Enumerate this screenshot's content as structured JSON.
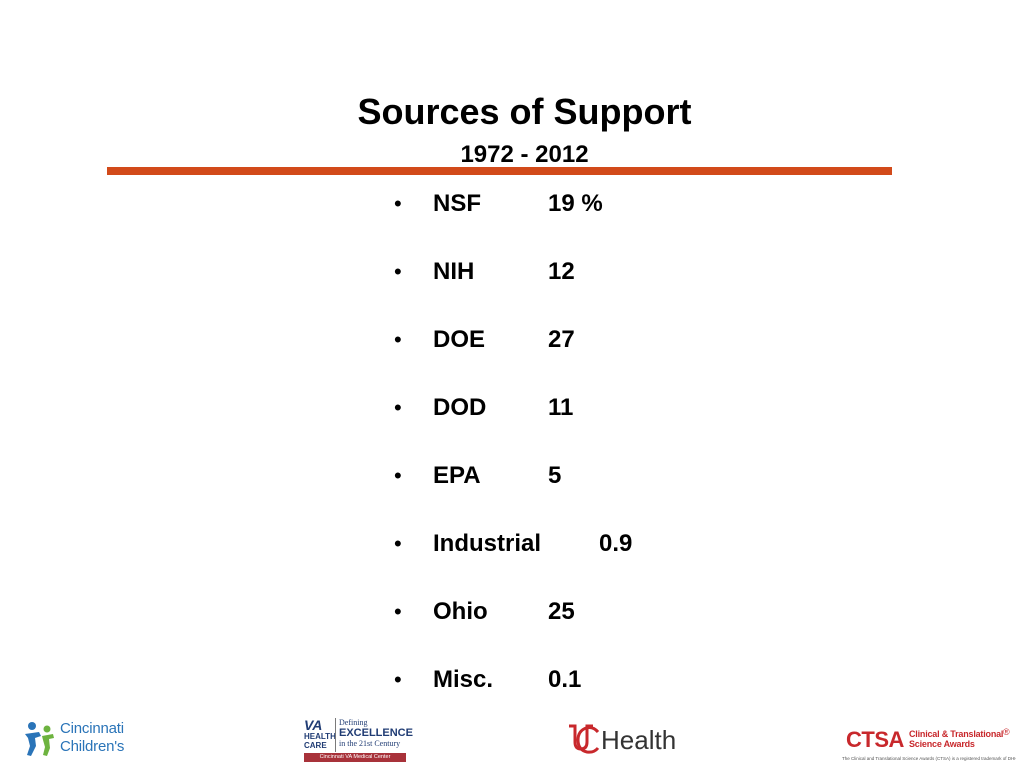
{
  "slide": {
    "title": "Sources of Support",
    "subtitle": "1972 - 2012",
    "accent_color": "#d24a1a"
  },
  "items": [
    {
      "bullet": "•",
      "name": "NSF",
      "value": "19 %"
    },
    {
      "bullet": "•",
      "name": "NIH",
      "value": "12"
    },
    {
      "bullet": "•",
      "name": "DOE",
      "value": "27"
    },
    {
      "bullet": "•",
      "name": "DOD",
      "value": "11"
    },
    {
      "bullet": "•",
      "name": "EPA",
      "value": "5"
    },
    {
      "bullet": "•",
      "name": "Industrial",
      "value": "0.9"
    },
    {
      "bullet": "•",
      "name": "Ohio",
      "value": "25"
    },
    {
      "bullet": "•",
      "name": "Misc.",
      "value": "0.1"
    }
  ],
  "footer": {
    "cincinnati": {
      "line1": "Cincinnati",
      "line2": "Children's"
    },
    "va": {
      "big": "VA",
      "small1": "HEALTH",
      "small2": "CARE",
      "defining": "Defining",
      "excellence": "EXCELLENCE",
      "century": "in the 21st Century",
      "bar": "Cincinnati VA Medical Center"
    },
    "uc": {
      "text": "Health"
    },
    "ctsa": {
      "mark": "CTSA",
      "line1": "Clinical & Translational",
      "line2": "Science Awards",
      "reg": "®",
      "note": "The Clinical and Translational Science Awards (CTSA) is a registered trademark of DHHS."
    }
  }
}
